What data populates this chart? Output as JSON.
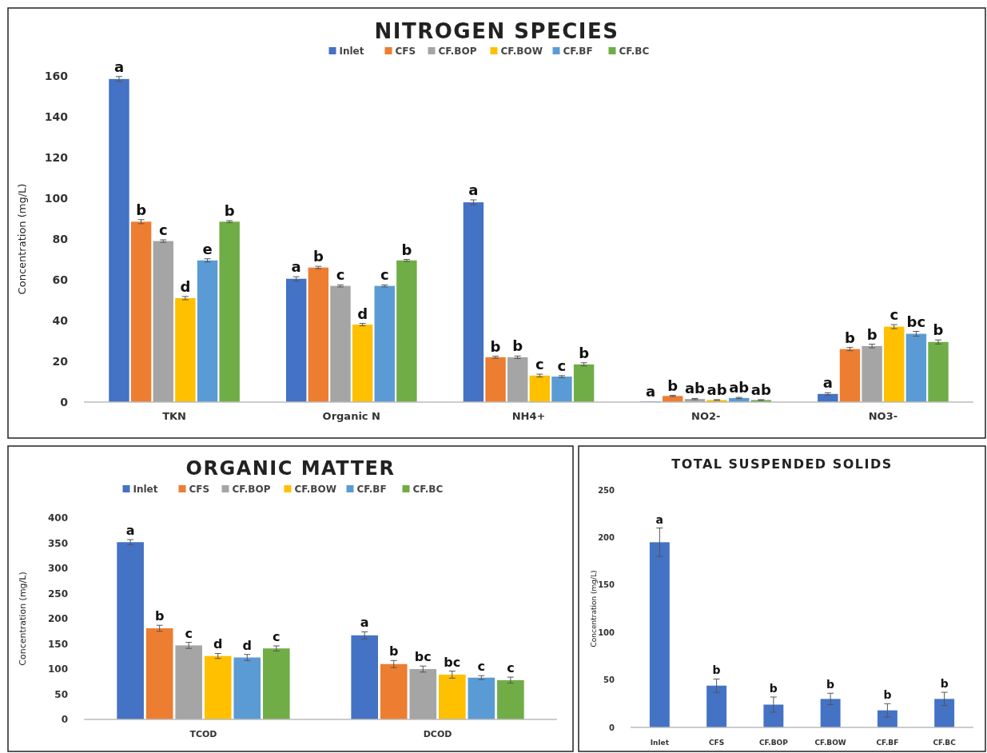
{
  "chart_data": [
    {
      "type": "bar",
      "title": "NITROGEN SPECIES",
      "ylabel": "Concentration (mg/L)",
      "categories": [
        "TKN",
        "Organic N",
        "NH4+",
        "NO2-",
        "NO3-"
      ],
      "ylim": [
        0,
        160
      ],
      "yticks": [
        0,
        20,
        40,
        60,
        80,
        100,
        120,
        140,
        160
      ],
      "legend": "top",
      "series": [
        {
          "name": "Inlet",
          "color": "#4472c4",
          "values": [
            158.5,
            60.5,
            98,
            0.3,
            4
          ],
          "errors": [
            1.2,
            1,
            1.2,
            null,
            0.6
          ],
          "value_labels": [
            "a",
            "a",
            "a",
            "a",
            "a"
          ]
        },
        {
          "name": "CFS",
          "color": "#ed7d31",
          "values": [
            88.5,
            66,
            22,
            3,
            26
          ],
          "errors": [
            1,
            0.6,
            0.5,
            0.3,
            0.8
          ],
          "value_labels": [
            "b",
            "b",
            "b",
            "b",
            "b"
          ]
        },
        {
          "name": "CF.BOP",
          "color": "#a5a5a5",
          "values": [
            79,
            57,
            22,
            1.5,
            27.5
          ],
          "errors": [
            0.6,
            0.5,
            0.6,
            0.3,
            0.9
          ],
          "value_labels": [
            "c",
            "c",
            "b",
            "ab",
            "b"
          ]
        },
        {
          "name": "CF.BOW",
          "color": "#ffc000",
          "values": [
            51,
            38,
            13,
            1,
            37
          ],
          "errors": [
            0.8,
            0.6,
            0.7,
            0.2,
            1
          ],
          "value_labels": [
            "d",
            "d",
            "c",
            "ab",
            "c"
          ]
        },
        {
          "name": "CF.BF",
          "color": "#5b9bd5",
          "values": [
            69.5,
            57,
            12.5,
            2,
            33.5
          ],
          "errors": [
            0.8,
            0.5,
            0.5,
            0.3,
            1.2
          ],
          "value_labels": [
            "e",
            "c",
            "c",
            "ab",
            "bc"
          ]
        },
        {
          "name": "CF.BC",
          "color": "#70ad47",
          "values": [
            88.5,
            69.5,
            18.5,
            1,
            29.5
          ],
          "errors": [
            0.5,
            0.5,
            0.8,
            0.2,
            1
          ],
          "value_labels": [
            "b",
            "b",
            "b",
            "ab",
            "b"
          ]
        }
      ]
    },
    {
      "type": "bar",
      "title": "ORGANIC MATTER",
      "ylabel": "Concentration (mg/L)",
      "categories": [
        "TCOD",
        "DCOD"
      ],
      "ylim": [
        0,
        400
      ],
      "yticks": [
        0,
        50,
        100,
        150,
        200,
        250,
        300,
        350,
        400
      ],
      "legend": "top",
      "series": [
        {
          "name": "Inlet",
          "color": "#4472c4",
          "values": [
            352,
            167
          ],
          "errors": [
            5,
            7
          ],
          "value_labels": [
            "a",
            "a"
          ]
        },
        {
          "name": "CFS",
          "color": "#ed7d31",
          "values": [
            181,
            110
          ],
          "errors": [
            6,
            7
          ],
          "value_labels": [
            "b",
            "b"
          ]
        },
        {
          "name": "CF.BOP",
          "color": "#a5a5a5",
          "values": [
            147,
            100
          ],
          "errors": [
            6,
            6
          ],
          "value_labels": [
            "c",
            "bc"
          ]
        },
        {
          "name": "CF.BOW",
          "color": "#ffc000",
          "values": [
            126,
            89
          ],
          "errors": [
            5,
            7
          ],
          "value_labels": [
            "d",
            "bc"
          ]
        },
        {
          "name": "CF.BF",
          "color": "#5b9bd5",
          "values": [
            123,
            83
          ],
          "errors": [
            6,
            4
          ],
          "value_labels": [
            "d",
            "c"
          ]
        },
        {
          "name": "CF.BC",
          "color": "#70ad47",
          "values": [
            141,
            78
          ],
          "errors": [
            5,
            6
          ],
          "value_labels": [
            "c",
            "c"
          ]
        }
      ]
    },
    {
      "type": "bar",
      "title": "TOTAL SUSPENDED SOLIDS",
      "ylabel": "Concentration (mg/L)",
      "categories": [
        "Inlet",
        "CFS",
        "CF.BOP",
        "CF.BOW",
        "CF.BF",
        "CF.BC"
      ],
      "ylim": [
        0,
        250
      ],
      "yticks": [
        0,
        50,
        100,
        150,
        200,
        250
      ],
      "series": [
        {
          "color": "#4472c4",
          "values": [
            195,
            44,
            24,
            30,
            18,
            30
          ],
          "errors": [
            15,
            7,
            8,
            6,
            7,
            7
          ],
          "value_labels": [
            "a",
            "b",
            "b",
            "b",
            "b",
            "b"
          ]
        }
      ]
    }
  ]
}
